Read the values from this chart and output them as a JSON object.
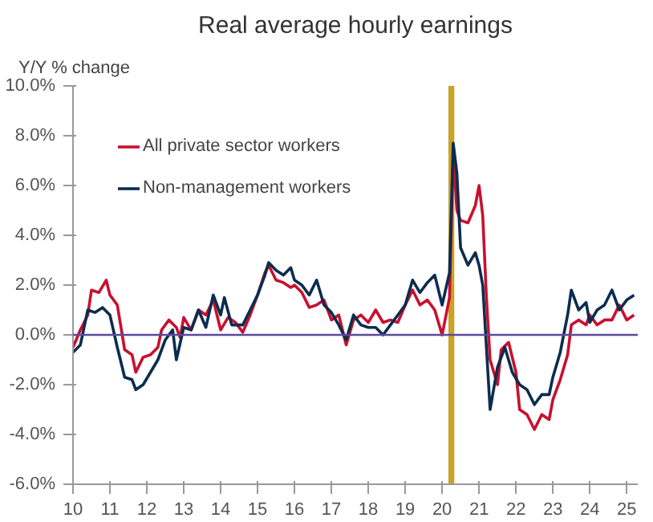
{
  "chart_data": {
    "type": "line",
    "title": "Real average hourly earnings",
    "ylabel": "Y/Y % change",
    "x": [
      10.0,
      10.2,
      10.4,
      10.5,
      10.7,
      10.9,
      11.0,
      11.2,
      11.4,
      11.6,
      11.7,
      11.9,
      12.1,
      12.3,
      12.4,
      12.6,
      12.8,
      12.9,
      13.0,
      13.2,
      13.4,
      13.6,
      13.8,
      14.0,
      14.2,
      14.4,
      14.6,
      14.8,
      15.0,
      15.2,
      15.3,
      15.5,
      15.7,
      15.9,
      16.0,
      16.2,
      16.4,
      16.6,
      16.8,
      17.0,
      17.2,
      17.4,
      17.6,
      17.8,
      18.0,
      18.2,
      18.4,
      18.6,
      18.8,
      19.0,
      19.2,
      19.4,
      19.6,
      19.8,
      20.0,
      20.2,
      20.3,
      20.4,
      20.5,
      20.7,
      20.9,
      21.0,
      21.1,
      21.2,
      21.3,
      21.5,
      21.6,
      21.8,
      22.0,
      22.1,
      22.3,
      22.5,
      22.7,
      22.9,
      23.0,
      23.2,
      23.4,
      23.5,
      23.7,
      23.9,
      24.0,
      24.2,
      24.4,
      24.6,
      24.8,
      25.0,
      25.2
    ],
    "series": [
      {
        "name": "All private sector workers",
        "color": "#c8102e",
        "values": [
          -0.5,
          0.2,
          0.8,
          1.8,
          1.7,
          2.2,
          1.6,
          1.2,
          -0.6,
          -0.8,
          -1.5,
          -0.9,
          -0.8,
          -0.5,
          0.2,
          0.6,
          0.3,
          -0.1,
          0.7,
          0.2,
          1.0,
          0.8,
          1.4,
          0.2,
          0.7,
          0.5,
          0.1,
          0.8,
          1.6,
          2.5,
          2.8,
          2.2,
          2.1,
          1.9,
          2.0,
          1.7,
          1.1,
          1.2,
          1.4,
          0.6,
          0.8,
          -0.4,
          0.6,
          0.8,
          0.5,
          1.0,
          0.5,
          0.6,
          0.5,
          1.2,
          1.8,
          1.2,
          1.4,
          1.0,
          0.0,
          1.5,
          7.3,
          5.0,
          4.6,
          4.5,
          5.2,
          6.0,
          4.8,
          1.5,
          -1.0,
          -2.0,
          -0.6,
          -0.3,
          -1.5,
          -3.0,
          -3.2,
          -3.8,
          -3.2,
          -3.4,
          -2.6,
          -1.8,
          -0.8,
          0.4,
          0.6,
          0.4,
          0.8,
          0.4,
          0.6,
          0.6,
          1.2,
          0.6,
          0.8
        ]
      },
      {
        "name": "Non-management workers",
        "color": "#0b2d4f",
        "x": [
          10.0,
          10.2,
          10.4,
          10.6,
          10.8,
          11.0,
          11.2,
          11.4,
          11.6,
          11.7,
          11.9,
          12.1,
          12.3,
          12.5,
          12.7,
          12.8,
          13.0,
          13.2,
          13.4,
          13.6,
          13.8,
          14.0,
          14.1,
          14.3,
          14.6,
          14.8,
          15.0,
          15.2,
          15.3,
          15.5,
          15.7,
          15.9,
          16.0,
          16.2,
          16.4,
          16.6,
          16.8,
          17.0,
          17.2,
          17.4,
          17.6,
          17.8,
          18.0,
          18.2,
          18.4,
          18.6,
          18.8,
          19.0,
          19.2,
          19.4,
          19.6,
          19.8,
          20.0,
          20.2,
          20.3,
          20.4,
          20.5,
          20.7,
          20.9,
          21.0,
          21.1,
          21.2,
          21.3,
          21.5,
          21.7,
          21.9,
          22.1,
          22.3,
          22.5,
          22.7,
          22.9,
          23.0,
          23.2,
          23.4,
          23.5,
          23.7,
          23.9,
          24.0,
          24.2,
          24.4,
          24.6,
          24.8,
          25.0,
          25.2
        ],
        "values": [
          -0.7,
          -0.4,
          1.0,
          0.9,
          1.1,
          0.8,
          -0.5,
          -1.7,
          -1.8,
          -2.2,
          -2.0,
          -1.5,
          -1.0,
          -0.2,
          0.2,
          -1.0,
          0.3,
          0.2,
          1.0,
          0.3,
          1.6,
          0.8,
          1.5,
          0.4,
          0.4,
          1.0,
          1.6,
          2.4,
          2.9,
          2.6,
          2.4,
          2.7,
          2.2,
          2.0,
          1.6,
          2.2,
          1.2,
          0.9,
          0.4,
          -0.2,
          0.8,
          0.4,
          0.3,
          0.3,
          0.0,
          0.4,
          0.8,
          1.2,
          2.2,
          1.7,
          2.1,
          2.4,
          1.2,
          2.5,
          7.7,
          6.5,
          3.5,
          2.8,
          3.3,
          2.8,
          2.0,
          -0.5,
          -3.0,
          -1.3,
          -0.5,
          -1.5,
          -2.0,
          -2.2,
          -2.8,
          -2.4,
          -2.4,
          -1.7,
          -0.7,
          0.8,
          1.8,
          1.0,
          1.3,
          0.5,
          1.0,
          1.2,
          1.8,
          1.0,
          1.4,
          1.6
        ]
      }
    ],
    "xlim": [
      10,
      25.3
    ],
    "xticks": [
      10,
      11,
      12,
      13,
      14,
      15,
      16,
      17,
      18,
      19,
      20,
      21,
      22,
      23,
      24,
      25
    ],
    "ylim": [
      -6,
      10
    ],
    "yticks": [
      {
        "value": -6,
        "label": "-6.0%"
      },
      {
        "value": -4,
        "label": "-4.0%"
      },
      {
        "value": -2,
        "label": "-2.0%"
      },
      {
        "value": 0,
        "label": "0.0%"
      },
      {
        "value": 2,
        "label": "2.0%"
      },
      {
        "value": 4,
        "label": "4.0%"
      },
      {
        "value": 6,
        "label": "6.0%"
      },
      {
        "value": 8,
        "label": "8.0%"
      },
      {
        "value": 10,
        "label": "10.0%"
      }
    ],
    "ref_lines": [
      {
        "axis": "y",
        "value": 0,
        "color": "#5b4a9e"
      }
    ],
    "bands": [
      {
        "axis": "x",
        "from": 20.17,
        "to": 20.33,
        "color": "#c9a227"
      }
    ],
    "grid": false,
    "legend": "top left",
    "marker": "none",
    "line_style": "solid"
  }
}
